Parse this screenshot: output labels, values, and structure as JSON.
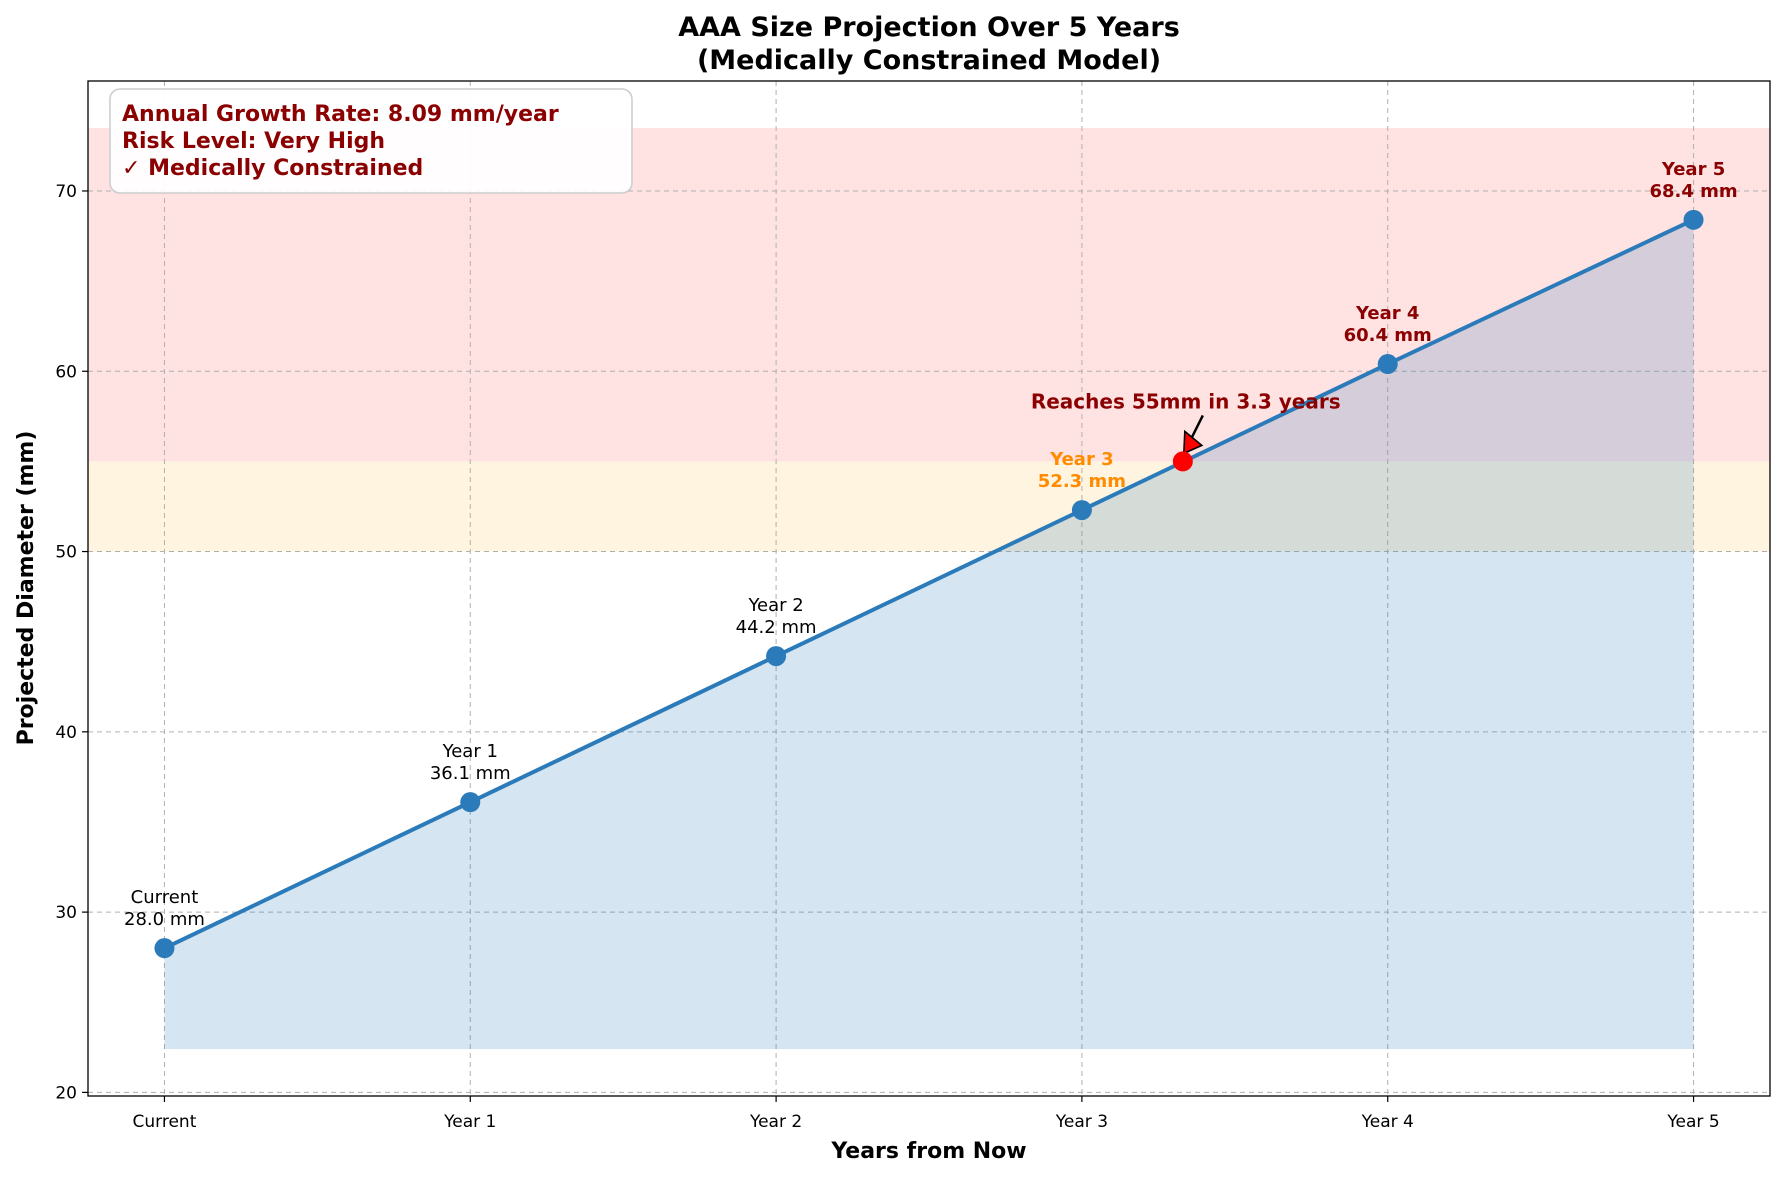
{
  "chart_data": {
    "type": "line",
    "title": "AAA Size Projection Over 5 Years",
    "subtitle": "(Medically Constrained Model)",
    "xlabel": "Years from Now",
    "ylabel": "Projected Diameter (mm)",
    "categories": [
      "Current",
      "Year 1",
      "Year 2",
      "Year 3",
      "Year 4",
      "Year 5"
    ],
    "x": [
      0,
      1,
      2,
      3,
      4,
      5
    ],
    "values": [
      28.0,
      36.1,
      44.2,
      52.3,
      60.4,
      68.4
    ],
    "point_labels": [
      {
        "name": "Current",
        "value": "28.0 mm",
        "color": "#000000",
        "bold": false
      },
      {
        "name": "Year 1",
        "value": "36.1 mm",
        "color": "#000000",
        "bold": false
      },
      {
        "name": "Year 2",
        "value": "44.2 mm",
        "color": "#000000",
        "bold": false
      },
      {
        "name": "Year 3",
        "value": "52.3 mm",
        "color": "#ff8c00",
        "bold": true
      },
      {
        "name": "Year 4",
        "value": "60.4 mm",
        "color": "#8b0000",
        "bold": true
      },
      {
        "name": "Year 5",
        "value": "68.4 mm",
        "color": "#8b0000",
        "bold": true
      }
    ],
    "xlim": [
      -0.25,
      5.25
    ],
    "ylim": [
      19.8,
      76.1
    ],
    "yticks": [
      20,
      30,
      40,
      50,
      60,
      70
    ],
    "grid": true,
    "fill_baseline": 22.4,
    "bands": [
      {
        "from": 50,
        "to": 55,
        "color": "#ffa500",
        "opacity": 0.12
      },
      {
        "from": 55,
        "to": 73.5,
        "color": "#ff0000",
        "opacity": 0.11
      }
    ],
    "line_color": "#2b7bba",
    "marker": {
      "x": 3.33,
      "y": 55,
      "color": "#ff0000"
    },
    "annotation": {
      "text": "Reaches 55mm in 3.3 years",
      "color": "#8b0000"
    },
    "info_box": {
      "position": "top-left",
      "color": "#8b0000",
      "lines": [
        "Annual Growth Rate: 8.09 mm/year",
        "Risk Level: Very High",
        "✓ Medically Constrained"
      ]
    }
  }
}
